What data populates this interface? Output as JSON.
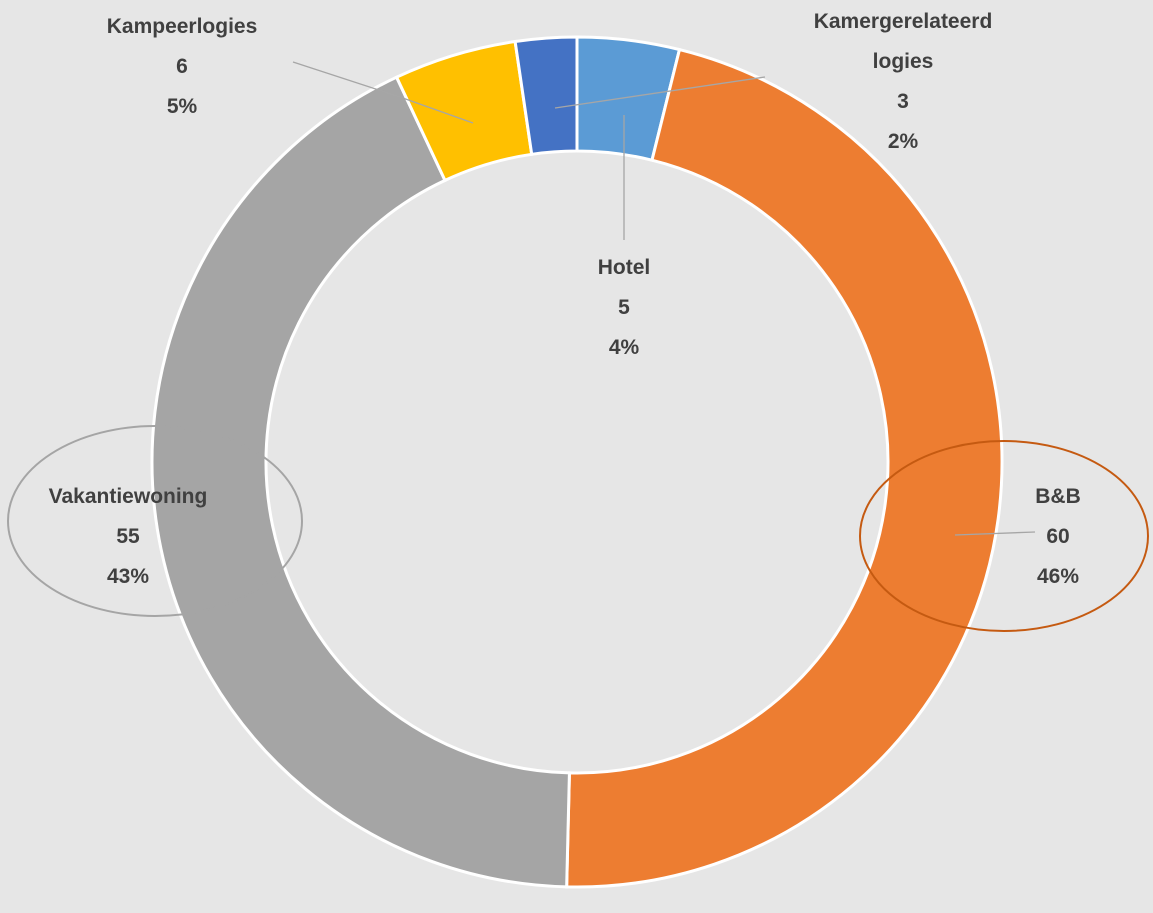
{
  "chart_data": {
    "type": "donut",
    "categories": [
      "Hotel",
      "B&B",
      "Vakantiewoning",
      "Kampeerlogies",
      "Kamergerelateerd logies"
    ],
    "values": [
      5,
      60,
      55,
      6,
      3
    ],
    "percentages": [
      "4%",
      "46%",
      "43%",
      "5%",
      "2%"
    ],
    "colors": [
      "#5b9bd5",
      "#ed7d31",
      "#a5a5a5",
      "#ffc000",
      "#4472c4"
    ]
  }
}
